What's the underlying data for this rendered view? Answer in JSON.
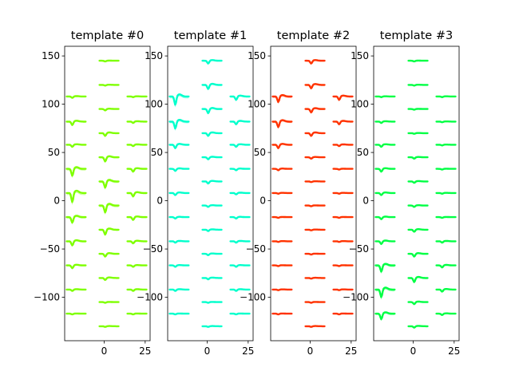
{
  "figure": {
    "background": "#ffffff"
  },
  "chart_data": [
    {
      "type": "line",
      "title": "template #0",
      "color": "#7fff00",
      "xlim": [
        -24,
        28
      ],
      "ylim": [
        -145,
        160
      ],
      "xticks": [
        0,
        25
      ],
      "yticks": [
        150,
        100,
        50,
        0,
        -50,
        -100
      ],
      "columns": [
        {
          "x": -17,
          "y": [
            108,
            82,
            58,
            33,
            8,
            -17,
            -42,
            -67,
            -92,
            -117
          ],
          "amp": [
            0.2,
            0.5,
            0.3,
            1.0,
            1.3,
            0.8,
            0.6,
            0.4,
            0.2,
            0.1
          ]
        },
        {
          "x": 3,
          "y": [
            145,
            120,
            95,
            70,
            45,
            20,
            -5,
            -30,
            -55,
            -80,
            -105,
            -130
          ],
          "amp": [
            0.1,
            0.1,
            0.2,
            0.4,
            0.6,
            0.9,
            1.0,
            0.7,
            0.4,
            0.3,
            0.1,
            0.1
          ]
        },
        {
          "x": 20,
          "y": [
            108,
            82,
            58,
            33,
            8,
            -17,
            -42,
            -67,
            -92,
            -117
          ],
          "amp": [
            0.1,
            0.2,
            0.2,
            0.4,
            0.5,
            0.4,
            0.3,
            0.2,
            0.2,
            0.1
          ]
        }
      ]
    },
    {
      "type": "line",
      "title": "template #1",
      "color": "#00ffcc",
      "xlim": [
        -24,
        28
      ],
      "ylim": [
        -145,
        160
      ],
      "xticks": [
        0,
        25
      ],
      "yticks": [
        150,
        100,
        50,
        0,
        -50,
        -100
      ],
      "columns": [
        {
          "x": -17,
          "y": [
            108,
            82,
            58,
            33,
            8,
            -17,
            -42,
            -67,
            -92,
            -117
          ],
          "amp": [
            1.2,
            1.0,
            0.5,
            0.3,
            0.3,
            0.2,
            0.2,
            0.2,
            0.2,
            0.1
          ]
        },
        {
          "x": 3,
          "y": [
            145,
            120,
            95,
            70,
            45,
            20,
            -5,
            -30,
            -55,
            -80,
            -105,
            -130
          ],
          "amp": [
            0.4,
            0.6,
            0.6,
            0.4,
            0.3,
            0.3,
            0.2,
            0.2,
            0.2,
            0.2,
            0.1,
            0.1
          ]
        },
        {
          "x": 20,
          "y": [
            108,
            82,
            58,
            33,
            8,
            -17,
            -42,
            -67,
            -92,
            -117
          ],
          "amp": [
            0.5,
            0.4,
            0.3,
            0.2,
            0.2,
            0.2,
            0.2,
            0.2,
            0.2,
            0.1
          ]
        }
      ]
    },
    {
      "type": "line",
      "title": "template #2",
      "color": "#ff3300",
      "xlim": [
        -24,
        28
      ],
      "ylim": [
        -145,
        160
      ],
      "xticks": [
        0,
        25
      ],
      "yticks": [
        150,
        100,
        50,
        0,
        -50,
        -100
      ],
      "columns": [
        {
          "x": -17,
          "y": [
            108,
            82,
            58,
            33,
            8,
            -17,
            -42,
            -67,
            -92,
            -117
          ],
          "amp": [
            0.8,
            0.8,
            0.5,
            0.2,
            0.1,
            0.1,
            0.1,
            0.1,
            0.1,
            0.1
          ]
        },
        {
          "x": 3,
          "y": [
            145,
            120,
            95,
            70,
            45,
            20,
            -5,
            -30,
            -55,
            -80,
            -105,
            -130
          ],
          "amp": [
            0.4,
            0.5,
            0.5,
            0.4,
            0.2,
            0.1,
            0.1,
            0.1,
            0.1,
            0.1,
            0.1,
            0.1
          ]
        },
        {
          "x": 20,
          "y": [
            108,
            82,
            58,
            33,
            8,
            -17,
            -42,
            -67,
            -92,
            -117
          ],
          "amp": [
            0.5,
            0.4,
            0.2,
            0.1,
            0.1,
            0.1,
            0.1,
            0.1,
            0.1,
            0.1
          ]
        }
      ]
    },
    {
      "type": "line",
      "title": "template #3",
      "color": "#00ff44",
      "xlim": [
        -24,
        28
      ],
      "ylim": [
        -145,
        160
      ],
      "xticks": [
        0,
        25
      ],
      "yticks": [
        150,
        100,
        50,
        0,
        -50,
        -100
      ],
      "columns": [
        {
          "x": -17,
          "y": [
            108,
            82,
            58,
            33,
            8,
            -17,
            -42,
            -67,
            -92,
            -117
          ],
          "amp": [
            0.1,
            0.2,
            0.3,
            0.4,
            0.3,
            0.3,
            0.4,
            0.9,
            1.1,
            0.8
          ]
        },
        {
          "x": 3,
          "y": [
            145,
            120,
            95,
            70,
            45,
            20,
            -5,
            -30,
            -55,
            -80,
            -105,
            -130
          ],
          "amp": [
            0.1,
            0.1,
            0.1,
            0.1,
            0.2,
            0.2,
            0.2,
            0.3,
            0.4,
            0.6,
            0.3,
            0.2
          ]
        },
        {
          "x": 20,
          "y": [
            108,
            82,
            58,
            33,
            8,
            -17,
            -42,
            -67,
            -92,
            -117
          ],
          "amp": [
            0.1,
            0.1,
            0.1,
            0.1,
            0.1,
            0.1,
            0.2,
            0.3,
            0.3,
            0.2
          ]
        }
      ]
    }
  ]
}
